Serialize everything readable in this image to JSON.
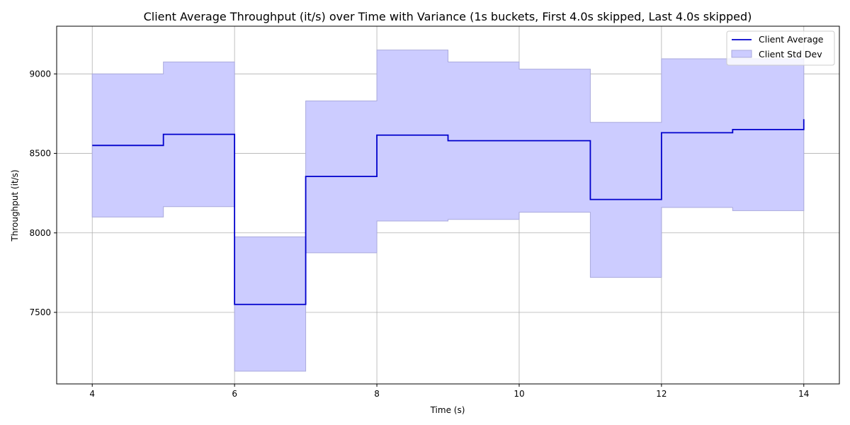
{
  "chart_data": {
    "type": "line",
    "title": "Client Average Throughput (it/s) over Time with Variance (1s buckets, First 4.0s skipped, Last 4.0s skipped)",
    "xlabel": "Time (s)",
    "ylabel": "Throughput (it/s)",
    "xlim": [
      3.5,
      14.5
    ],
    "ylim": [
      7050,
      9300
    ],
    "xticks": [
      4,
      6,
      8,
      10,
      12,
      14
    ],
    "yticks": [
      7500,
      8000,
      8500,
      9000
    ],
    "grid": true,
    "legend_position": "top-right",
    "step": "post",
    "x": [
      4,
      5,
      6,
      7,
      8,
      9,
      10,
      11,
      12,
      13,
      14
    ],
    "series": [
      {
        "name": "Client Average",
        "kind": "line",
        "color": "#0000cc",
        "values": [
          8550,
          8620,
          7550,
          8355,
          8615,
          8580,
          8580,
          8210,
          8630,
          8650,
          8715
        ]
      },
      {
        "name": "Client Std Dev",
        "kind": "band",
        "color": "#ccccff",
        "lower": [
          8100,
          8165,
          7130,
          7875,
          8075,
          8085,
          8130,
          7720,
          8160,
          8140,
          8140
        ],
        "upper": [
          9000,
          9075,
          7975,
          8830,
          9150,
          9075,
          9030,
          8695,
          9095,
          9095,
          9095
        ]
      }
    ]
  }
}
